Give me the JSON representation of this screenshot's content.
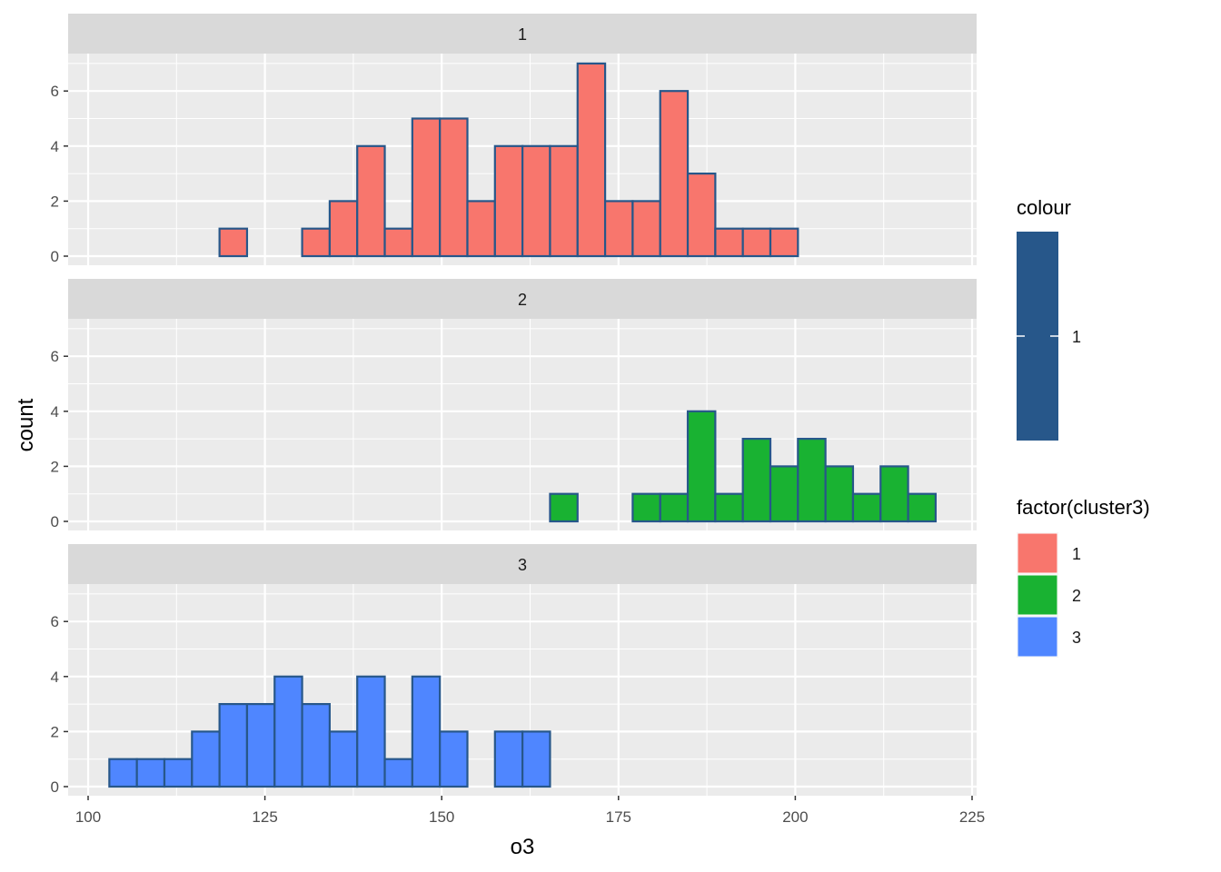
{
  "chart_data": {
    "type": "bar",
    "subtype": "faceted-histogram",
    "xlabel": "o3",
    "ylabel": "count",
    "xlim": [
      100,
      225
    ],
    "ylim": [
      0,
      7
    ],
    "x_ticks": [
      100,
      125,
      150,
      175,
      200,
      225
    ],
    "y_ticks": [
      0,
      2,
      4,
      6
    ],
    "bin_start": 103,
    "bin_width": 3.895,
    "bins": 30,
    "outline_color": "#27578A",
    "grid": true,
    "facets": [
      {
        "label": "1",
        "fill": "#F8766D",
        "counts": [
          0,
          0,
          0,
          0,
          1,
          0,
          0,
          1,
          2,
          4,
          1,
          5,
          5,
          2,
          4,
          4,
          4,
          7,
          2,
          2,
          6,
          3,
          1,
          1,
          1,
          0,
          0,
          0,
          0,
          0
        ]
      },
      {
        "label": "2",
        "fill": "#19B232",
        "counts": [
          0,
          0,
          0,
          0,
          0,
          0,
          0,
          0,
          0,
          0,
          0,
          0,
          0,
          0,
          0,
          0,
          1,
          0,
          0,
          1,
          1,
          4,
          1,
          3,
          2,
          3,
          2,
          1,
          2,
          1
        ]
      },
      {
        "label": "3",
        "fill": "#4F86FF",
        "counts": [
          1,
          1,
          1,
          2,
          3,
          3,
          4,
          3,
          2,
          4,
          1,
          4,
          2,
          0,
          2,
          2,
          0,
          0,
          0,
          0,
          0,
          0,
          0,
          0,
          0,
          0,
          0,
          0,
          0,
          0
        ]
      }
    ],
    "legends": [
      {
        "title": "colour",
        "type": "colorbar",
        "color": "#27578A",
        "labels": [
          "1"
        ]
      },
      {
        "title": "factor(cluster3)",
        "entries": [
          {
            "label": "1",
            "color": "#F8766D"
          },
          {
            "label": "2",
            "color": "#19B232"
          },
          {
            "label": "3",
            "color": "#4F86FF"
          }
        ],
        "placement": "right"
      }
    ]
  }
}
